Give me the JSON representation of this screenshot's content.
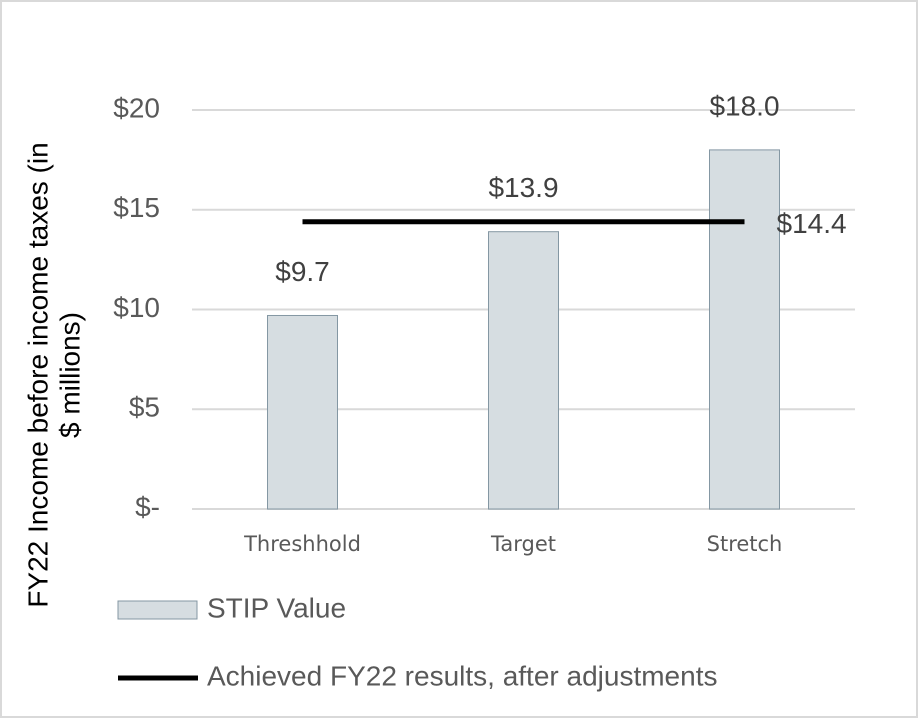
{
  "chart_data": {
    "type": "bar",
    "y_label": [
      "FY22 Income before income taxes (in",
      "$ millions)"
    ],
    "categories": [
      "Threshhold",
      "Target",
      "Stretch"
    ],
    "series": [
      {
        "name": "STIP Value",
        "type": "bar",
        "color": "#d6dde1",
        "values": [
          9.7,
          13.9,
          18.0
        ],
        "value_labels": [
          "$9.7",
          "$13.9",
          "$18.0"
        ]
      },
      {
        "name": "Achieved FY22 results, after adjustments",
        "type": "line",
        "color": "#000000",
        "values": [
          14.4,
          14.4,
          14.4
        ],
        "value_labels": [
          null,
          null,
          "$14.4"
        ]
      }
    ],
    "ylim": [
      0,
      20
    ],
    "yticks": [
      {
        "value": 0,
        "label": "$-"
      },
      {
        "value": 5,
        "label": "$5"
      },
      {
        "value": 10,
        "label": "$10"
      },
      {
        "value": 15,
        "label": "$15"
      },
      {
        "value": 20,
        "label": "$20"
      }
    ],
    "grid": true,
    "legend": "bottom"
  }
}
